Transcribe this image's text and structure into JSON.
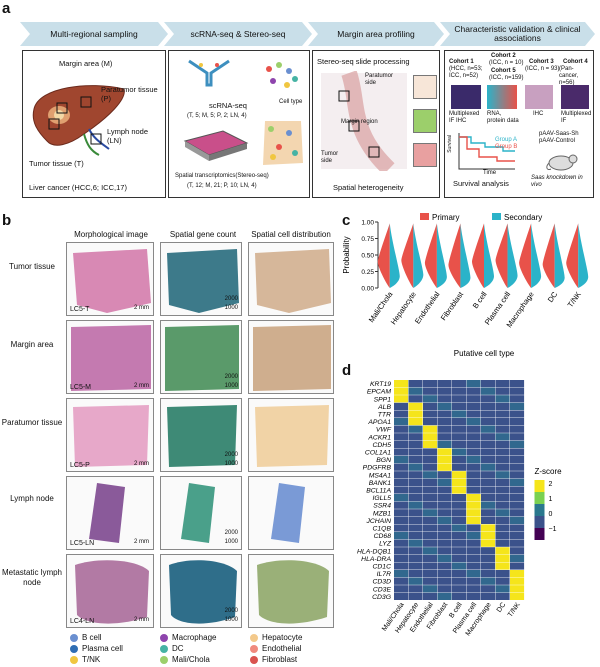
{
  "panels": {
    "a": "a",
    "b": "b",
    "c": "c",
    "d": "d"
  },
  "panel_a": {
    "stages": [
      "Multi-regional sampling",
      "scRNA-seq & Stereo-seq",
      "Margin area profiling",
      "Characteristic validation & clinical associations"
    ],
    "sampling": {
      "margin": "Margin area (M)",
      "paratumor": "Paratumor tissue (P)",
      "lymph": "Lymph node (LN)",
      "tumor": "Tumor tissue (T)",
      "footer": "Liver cancer (HCC,6; ICC,17)"
    },
    "seq": {
      "scrna": "scRNA-seq",
      "scrna_n": "(T, 5; M, 5; P, 2; LN, 4)",
      "celltype": "Cell type",
      "stereo": "Spatial transcriptomics(Stereo-seq)",
      "stereo_n": "(T, 12; M, 21; P, 10; LN, 4)"
    },
    "margin": {
      "title": "Stereo-seq slide processing",
      "paratumor_side": "Paratumor side",
      "region": "Margin region",
      "tumor_side": "Tumor side",
      "footer": "Spatial heterogeneity"
    },
    "validation": {
      "c1": "Cohort 1",
      "c1_d": "(HCC, n=53; ICC, n=52)",
      "c2": "Cohort 2",
      "c2_d": "(ICC, n = 10)",
      "c5": "Cohort 5",
      "c5_d": "(ICC, n=159)",
      "c3": "Cohort 3",
      "c3_d": "(ICC, n = 93)",
      "c4": "Cohort 4",
      "c4_d": "(Pan-cancer, n=56)",
      "m1": "Multiplexed IF IHC",
      "m2": "RNA, protein data",
      "m3": "IHC",
      "m4": "Multiplexed IF",
      "survival": "Survival",
      "time": "Time",
      "groupA": "Group A",
      "groupB": "Group B",
      "surv_label": "Survival analysis",
      "aav1": "pAAV-Saas-Sh",
      "aav2": "pAAV-Control",
      "knock": "Saas knockdown in vivo"
    }
  },
  "panel_b": {
    "columns": [
      "Morphological image",
      "Spatial gene count",
      "Spatial cell distribution"
    ],
    "rows": [
      {
        "name": "Tumor tissue",
        "sample": "LC5-T"
      },
      {
        "name": "Margin area",
        "sample": "LC5-M"
      },
      {
        "name": "Paratumor tissue",
        "sample": "LC5-P"
      },
      {
        "name": "Lymph node",
        "sample": "LC5-LN"
      },
      {
        "name": "Metastatic lymph node",
        "sample": "LC4-LN"
      }
    ],
    "scale": "2 mm",
    "cbar_hi": "2000",
    "cbar_lo": "1000",
    "legend": [
      {
        "label": "B cell",
        "color": "#6a8fd0"
      },
      {
        "label": "Macrophage",
        "color": "#8e44ad"
      },
      {
        "label": "Hepatocyte",
        "color": "#f3c98b"
      },
      {
        "label": "Plasma cell",
        "color": "#2f6db3"
      },
      {
        "label": "DC",
        "color": "#46b3a4"
      },
      {
        "label": "Endothelial",
        "color": "#f08a7e"
      },
      {
        "label": "T/NK",
        "color": "#f0c640"
      },
      {
        "label": "Mali/Chola",
        "color": "#9ccf6b"
      },
      {
        "label": "Fibroblast",
        "color": "#d9534f"
      }
    ]
  },
  "chart_data": [
    {
      "type": "violin",
      "title": "",
      "xlabel": "Putative cell type",
      "ylabel": "Probability",
      "ylim": [
        0,
        1
      ],
      "yticks": [
        "0.00",
        "0.25",
        "0.50",
        "0.75",
        "1.00"
      ],
      "categories": [
        "Mali/Chola",
        "Hepatocyte",
        "Endothelial",
        "Fibroblast",
        "B cell",
        "Plasma cell",
        "Macrophage",
        "DC",
        "T/NK"
      ],
      "series": [
        {
          "name": "Primary",
          "color": "#e8524a",
          "median": [
            0.4,
            0.42,
            0.38,
            0.35,
            0.4,
            0.42,
            0.38,
            0.36,
            0.38
          ]
        },
        {
          "name": "Secondary",
          "color": "#2bb3c9",
          "median": [
            0.18,
            0.2,
            0.17,
            0.16,
            0.18,
            0.19,
            0.18,
            0.16,
            0.17
          ]
        }
      ]
    },
    {
      "type": "heatmap",
      "title": "",
      "legend_title": "Z-score",
      "scale_ticks": [
        "2",
        "1",
        "0",
        "−1"
      ],
      "genes": [
        "KRT19",
        "EPCAM",
        "SPP1",
        "ALB",
        "TTR",
        "APOA1",
        "VWF",
        "ACKR1",
        "CDH5",
        "COL1A1",
        "BGN",
        "PDGFRB",
        "MS4A1",
        "BANK1",
        "BCL11A",
        "IGLL5",
        "SSR4",
        "MZB1",
        "JCHAIN",
        "C1QB",
        "CD68",
        "LYZ",
        "HLA-DQB1",
        "HLA-DRA",
        "CD1C",
        "IL7R",
        "CD3D",
        "CD3E",
        "CD3G"
      ],
      "cell_types": [
        "Mali/Chola",
        "Hepatocyte",
        "Endothelial",
        "Fibroblast",
        "B cell",
        "Plasma cell",
        "Macrophage",
        "DC",
        "T/NK"
      ],
      "high_column": [
        0,
        0,
        0,
        1,
        1,
        1,
        2,
        2,
        2,
        3,
        3,
        3,
        4,
        4,
        4,
        5,
        5,
        5,
        5,
        6,
        6,
        6,
        7,
        7,
        7,
        8,
        8,
        8,
        8
      ]
    }
  ]
}
